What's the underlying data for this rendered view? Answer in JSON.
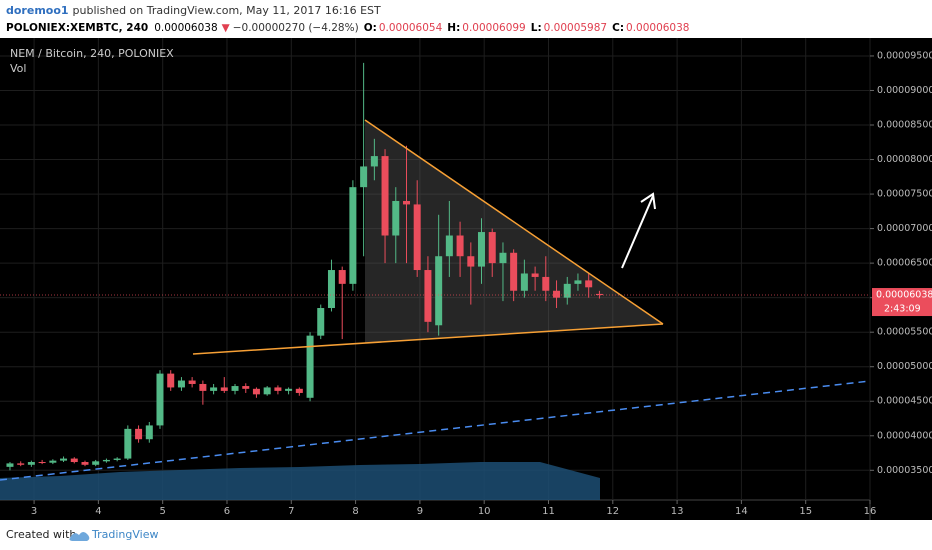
{
  "header": {
    "publisher": "doremoo1",
    "published": "published on TradingView.com, May 11, 2017 16:16 EST",
    "symbol": "POLONIEX:XEMBTC, 240",
    "price": "0.00006038",
    "direction": "▼",
    "change": "−0.00000270 (−4.28%)",
    "ohlc": [
      {
        "label": "O:",
        "value": "0.00006054"
      },
      {
        "label": "H:",
        "value": "0.00006099"
      },
      {
        "label": "L:",
        "value": "0.00005987"
      },
      {
        "label": "C:",
        "value": "0.00006038"
      }
    ]
  },
  "chart_data": {
    "type": "candlestick",
    "title": "NEM / Bitcoin, 240, POLONIEX",
    "volume_label": "Vol",
    "last_price_label": "0.00006038",
    "countdown": "2:43:09",
    "up_color": "#53b987",
    "down_color": "#eb4d5c",
    "grid": true,
    "x": [
      2.625,
      2.792,
      2.958,
      3.125,
      3.292,
      3.458,
      3.625,
      3.792,
      3.958,
      4.125,
      4.292,
      4.458,
      4.625,
      4.792,
      4.958,
      5.125,
      5.292,
      5.458,
      5.625,
      5.792,
      5.958,
      6.125,
      6.292,
      6.458,
      6.625,
      6.792,
      6.958,
      7.125,
      7.292,
      7.458,
      7.625,
      7.792,
      7.958,
      8.125,
      8.292,
      8.458,
      8.625,
      8.792,
      8.958,
      9.125,
      9.292,
      9.458,
      9.625,
      9.792,
      9.958,
      10.125,
      10.292,
      10.458,
      10.625,
      10.792,
      10.958,
      11.125,
      11.292,
      11.458,
      11.625,
      11.792
    ],
    "open": [
      3.55e-05,
      3.6e-05,
      3.58e-05,
      3.62e-05,
      3.61e-05,
      3.64e-05,
      3.67e-05,
      3.62e-05,
      3.58e-05,
      3.63e-05,
      3.65e-05,
      3.67e-05,
      4.1e-05,
      3.95e-05,
      4.15e-05,
      4.9e-05,
      4.7e-05,
      4.8e-05,
      4.75e-05,
      4.65e-05,
      4.7e-05,
      4.65e-05,
      4.72e-05,
      4.68e-05,
      4.6e-05,
      4.7e-05,
      4.65e-05,
      4.68e-05,
      4.55e-05,
      5.45e-05,
      5.85e-05,
      6.4e-05,
      6.2e-05,
      7.6e-05,
      7.9e-05,
      8.05e-05,
      6.9e-05,
      7.4e-05,
      7.35e-05,
      6.4e-05,
      5.6e-05,
      6.6e-05,
      6.9e-05,
      6.6e-05,
      6.45e-05,
      6.95e-05,
      6.5e-05,
      6.65e-05,
      6.1e-05,
      6.35e-05,
      6.3e-05,
      6.1e-05,
      6e-05,
      6.2e-05,
      6.25e-05,
      6.054e-05
    ],
    "high": [
      3.62e-05,
      3.63e-05,
      3.64e-05,
      3.65e-05,
      3.66e-05,
      3.7e-05,
      3.69e-05,
      3.64e-05,
      3.65e-05,
      3.67e-05,
      3.69e-05,
      4.15e-05,
      4.15e-05,
      4.2e-05,
      4.95e-05,
      4.95e-05,
      4.85e-05,
      4.85e-05,
      4.8e-05,
      4.75e-05,
      4.85e-05,
      4.75e-05,
      4.76e-05,
      4.7e-05,
      4.72e-05,
      4.73e-05,
      4.7e-05,
      4.7e-05,
      5.5e-05,
      5.9e-05,
      6.55e-05,
      6.45e-05,
      7.7e-05,
      9.4e-05,
      8.3e-05,
      8.15e-05,
      7.6e-05,
      8.2e-05,
      7.7e-05,
      6.6e-05,
      7.2e-05,
      7.4e-05,
      7.1e-05,
      6.8e-05,
      7.15e-05,
      7e-05,
      6.8e-05,
      6.7e-05,
      6.55e-05,
      6.45e-05,
      6.6e-05,
      6.25e-05,
      6.3e-05,
      6.35e-05,
      6.35e-05,
      6.099e-05
    ],
    "low": [
      3.5e-05,
      3.56e-05,
      3.55e-05,
      3.59e-05,
      3.59e-05,
      3.62e-05,
      3.6e-05,
      3.56e-05,
      3.56e-05,
      3.61e-05,
      3.63e-05,
      3.65e-05,
      3.9e-05,
      3.9e-05,
      4.1e-05,
      4.65e-05,
      4.65e-05,
      4.7e-05,
      4.45e-05,
      4.6e-05,
      4.62e-05,
      4.6e-05,
      4.62e-05,
      4.55e-05,
      4.58e-05,
      4.6e-05,
      4.6e-05,
      4.58e-05,
      4.5e-05,
      5.4e-05,
      5.8e-05,
      5.4e-05,
      6.1e-05,
      6.6e-05,
      7.7e-05,
      6.5e-05,
      6.5e-05,
      6.5e-05,
      6.3e-05,
      5.5e-05,
      5.45e-05,
      6.3e-05,
      6.3e-05,
      5.9e-05,
      6.2e-05,
      6.3e-05,
      5.95e-05,
      5.95e-05,
      6e-05,
      6.1e-05,
      5.95e-05,
      5.85e-05,
      5.9e-05,
      6.1e-05,
      6e-05,
      5.987e-05
    ],
    "close": [
      3.6e-05,
      3.58e-05,
      3.62e-05,
      3.61e-05,
      3.64e-05,
      3.67e-05,
      3.62e-05,
      3.58e-05,
      3.63e-05,
      3.65e-05,
      3.67e-05,
      4.1e-05,
      3.95e-05,
      4.15e-05,
      4.9e-05,
      4.7e-05,
      4.8e-05,
      4.75e-05,
      4.65e-05,
      4.7e-05,
      4.65e-05,
      4.72e-05,
      4.68e-05,
      4.6e-05,
      4.7e-05,
      4.65e-05,
      4.68e-05,
      4.62e-05,
      5.45e-05,
      5.85e-05,
      6.4e-05,
      6.2e-05,
      7.6e-05,
      7.9e-05,
      8.05e-05,
      6.9e-05,
      7.4e-05,
      7.35e-05,
      6.4e-05,
      5.65e-05,
      6.6e-05,
      6.9e-05,
      6.6e-05,
      6.45e-05,
      6.95e-05,
      6.5e-05,
      6.65e-05,
      6.1e-05,
      6.35e-05,
      6.3e-05,
      6.1e-05,
      6e-05,
      6.2e-05,
      6.25e-05,
      6.15e-05,
      6.038e-05
    ],
    "xlim": [
      2.47,
      16.0
    ],
    "xticks": [
      3,
      4,
      5,
      6,
      7,
      8,
      9,
      10,
      11,
      12,
      13,
      14,
      15,
      16
    ],
    "ylim": [
      3.07e-05,
      9.76e-05
    ],
    "yticks": [
      {
        "value": 3.5e-05,
        "label": "0.00003500"
      },
      {
        "value": 4e-05,
        "label": "0.00004000"
      },
      {
        "value": 4.5e-05,
        "label": "0.00004500"
      },
      {
        "value": 5e-05,
        "label": "0.00005000"
      },
      {
        "value": 5.5e-05,
        "label": "0.00005500"
      },
      {
        "value": 6e-05,
        "label": "0.00006000"
      },
      {
        "value": 6.5e-05,
        "label": "0.00006500"
      },
      {
        "value": 7e-05,
        "label": "0.00007000"
      },
      {
        "value": 7.5e-05,
        "label": "0.00007500"
      },
      {
        "value": 8e-05,
        "label": "0.00008000"
      },
      {
        "value": 8.5e-05,
        "label": "0.00008500"
      },
      {
        "value": 9e-05,
        "label": "0.00009000"
      },
      {
        "value": 9.5e-05,
        "label": "0.00009500"
      }
    ]
  },
  "footer": {
    "created": "Created with",
    "brand": "TradingView"
  }
}
